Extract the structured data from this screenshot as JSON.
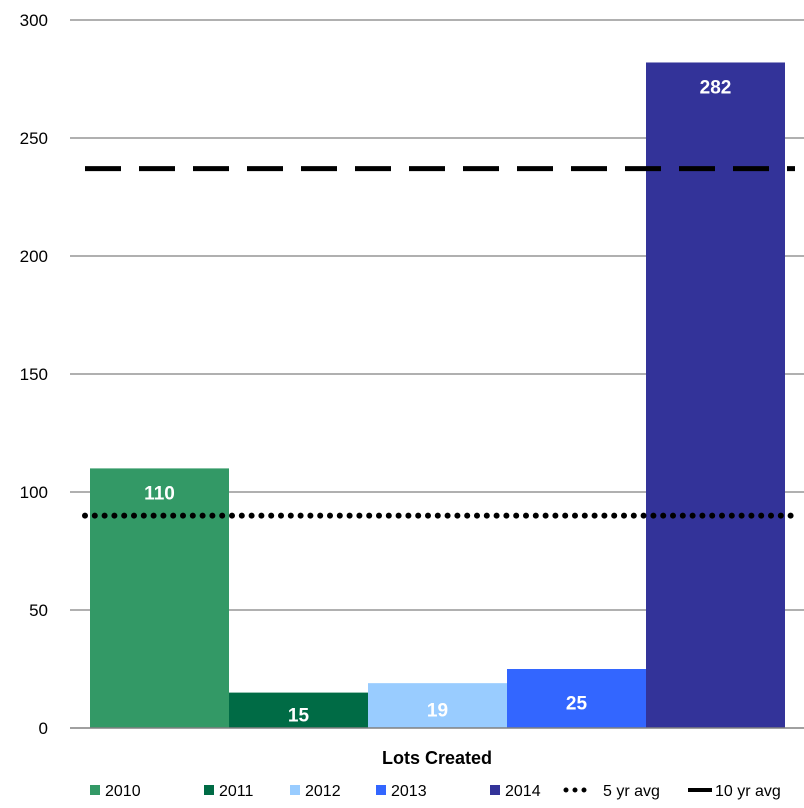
{
  "chart_data": {
    "type": "bar",
    "title": "",
    "xlabel": "Lots Created",
    "ylabel": "",
    "ylim": [
      0,
      300
    ],
    "yticks": [
      0,
      50,
      100,
      150,
      200,
      250,
      300
    ],
    "grid": true,
    "legend_position": "bottom",
    "series": [
      {
        "name": "2010",
        "value": 110,
        "label": "110",
        "color": "#339966"
      },
      {
        "name": "2011",
        "value": 15,
        "label": "15",
        "color": "#006b45"
      },
      {
        "name": "2012",
        "value": 19,
        "label": "19",
        "color": "#99ccff"
      },
      {
        "name": "2013",
        "value": 25,
        "label": "25",
        "color": "#3366ff"
      },
      {
        "name": "2014",
        "value": 282,
        "label": "282",
        "color": "#333399"
      }
    ],
    "reference_lines": [
      {
        "name": "5 yr avg",
        "value": 90,
        "style": "dotted",
        "color": "#000000"
      },
      {
        "name": "10 yr avg",
        "value": 237,
        "style": "dashed",
        "color": "#000000"
      }
    ]
  }
}
